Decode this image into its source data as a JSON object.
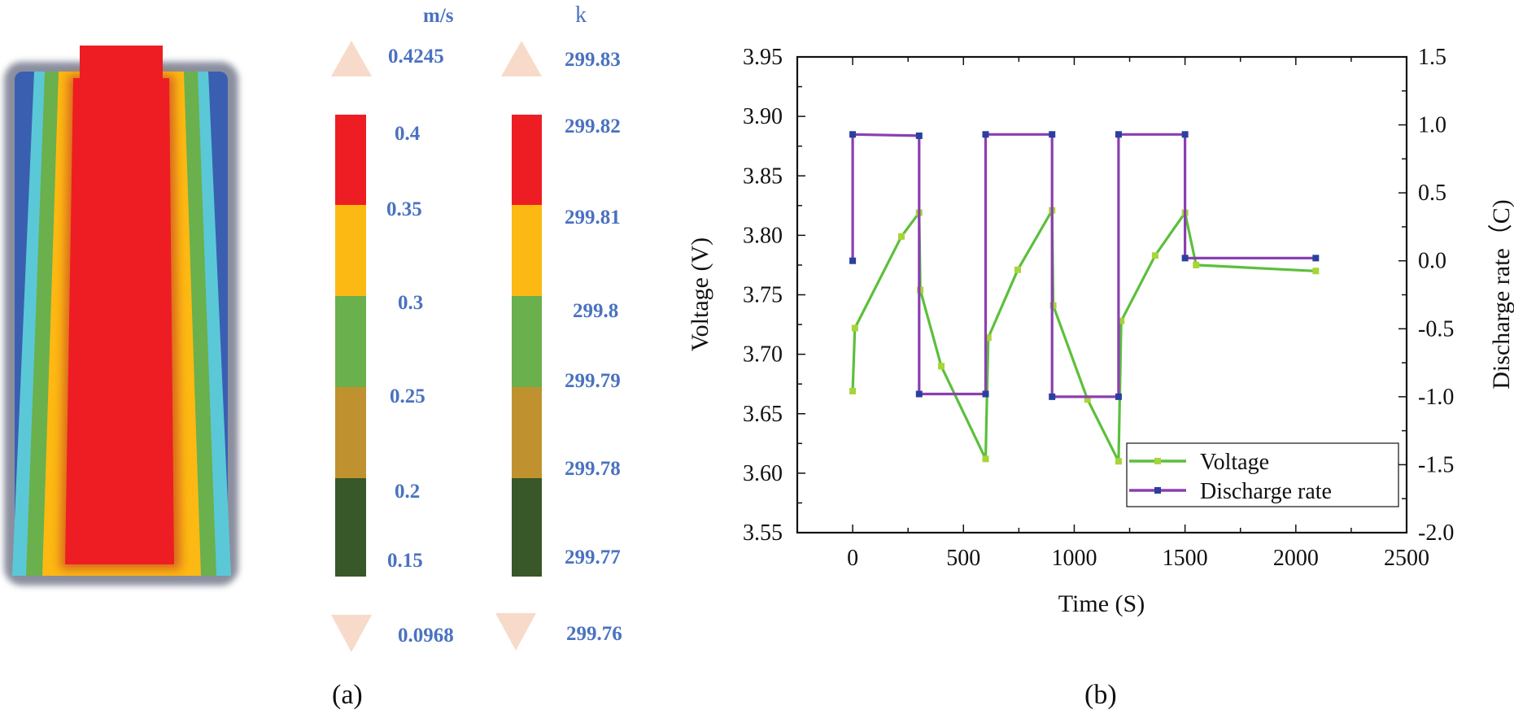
{
  "panel_a": {
    "label": "(a)",
    "velocity_legend": {
      "unit": "m/s",
      "max": "0.4245",
      "min": "0.0968",
      "ticks": [
        "0.4",
        "0.35",
        "0.3",
        "0.25",
        "0.2",
        "0.15"
      ],
      "band_colors": [
        "#ee1d23",
        "#fdb913",
        "#6ab04c",
        "#c0922f",
        "#38582a"
      ]
    },
    "temperature_legend": {
      "unit": "k",
      "max": "299.83",
      "min": "299.76",
      "ticks": [
        "299.82",
        "299.81",
        "299.8",
        "299.79",
        "299.78",
        "299.77"
      ],
      "band_colors": [
        "#ee1d23",
        "#fdb913",
        "#6ab04c",
        "#c0922f",
        "#38582a"
      ]
    },
    "contour_colors": {
      "outer": "#3a5fb0",
      "cyan": "#5bc8d8",
      "green": "#6ab04c",
      "orange": "#fdb913",
      "core": "#ee1d23"
    }
  },
  "chart_data": {
    "type": "line",
    "panel_label": "(b)",
    "xlabel": "Time (S)",
    "ylabel": "Voltage (V)",
    "y2label": "Discharge rate（C)",
    "xlim": [
      -250,
      2500
    ],
    "ylim": [
      3.55,
      3.95
    ],
    "y2lim": [
      -2.0,
      1.5
    ],
    "xticks": [
      0,
      500,
      1000,
      1500,
      2000,
      2500
    ],
    "yticks": [
      3.55,
      3.6,
      3.65,
      3.7,
      3.75,
      3.8,
      3.85,
      3.9,
      3.95
    ],
    "ytick_labels": [
      "3.55",
      "3.60",
      "3.65",
      "3.70",
      "3.75",
      "3.80",
      "3.85",
      "3.90",
      "3.95"
    ],
    "y2ticks": [
      -2.0,
      -1.5,
      -1.0,
      -0.5,
      0.0,
      0.5,
      1.0,
      1.5
    ],
    "y2tick_labels": [
      "-2.0",
      "-1.5",
      "-1.0",
      "-0.5",
      "0.0",
      "0.5",
      "1.0",
      "1.5"
    ],
    "legend_position": "bottom-right",
    "series": [
      {
        "name": "Voltage",
        "axis": "left",
        "color": "#5cbf3c",
        "marker_color": "#a8d43a",
        "x": [
          0,
          10,
          220,
          300,
          305,
          400,
          600,
          612,
          745,
          900,
          905,
          1060,
          1200,
          1212,
          1365,
          1500,
          1550,
          2090
        ],
        "y": [
          3.669,
          3.722,
          3.799,
          3.819,
          3.754,
          3.69,
          3.612,
          3.714,
          3.771,
          3.821,
          3.741,
          3.662,
          3.61,
          3.728,
          3.783,
          3.819,
          3.775,
          3.77
        ]
      },
      {
        "name": "Discharge rate",
        "axis": "right",
        "color": "#8a3fb0",
        "marker_color": "#2a3f9f",
        "x": [
          0,
          0,
          300,
          300,
          600,
          600,
          900,
          900,
          1200,
          1200,
          1500,
          1500,
          2090
        ],
        "y": [
          0.0,
          0.93,
          0.92,
          -0.98,
          -0.98,
          0.93,
          0.93,
          -1.0,
          -1.0,
          0.93,
          0.93,
          0.02,
          0.02
        ]
      }
    ]
  }
}
